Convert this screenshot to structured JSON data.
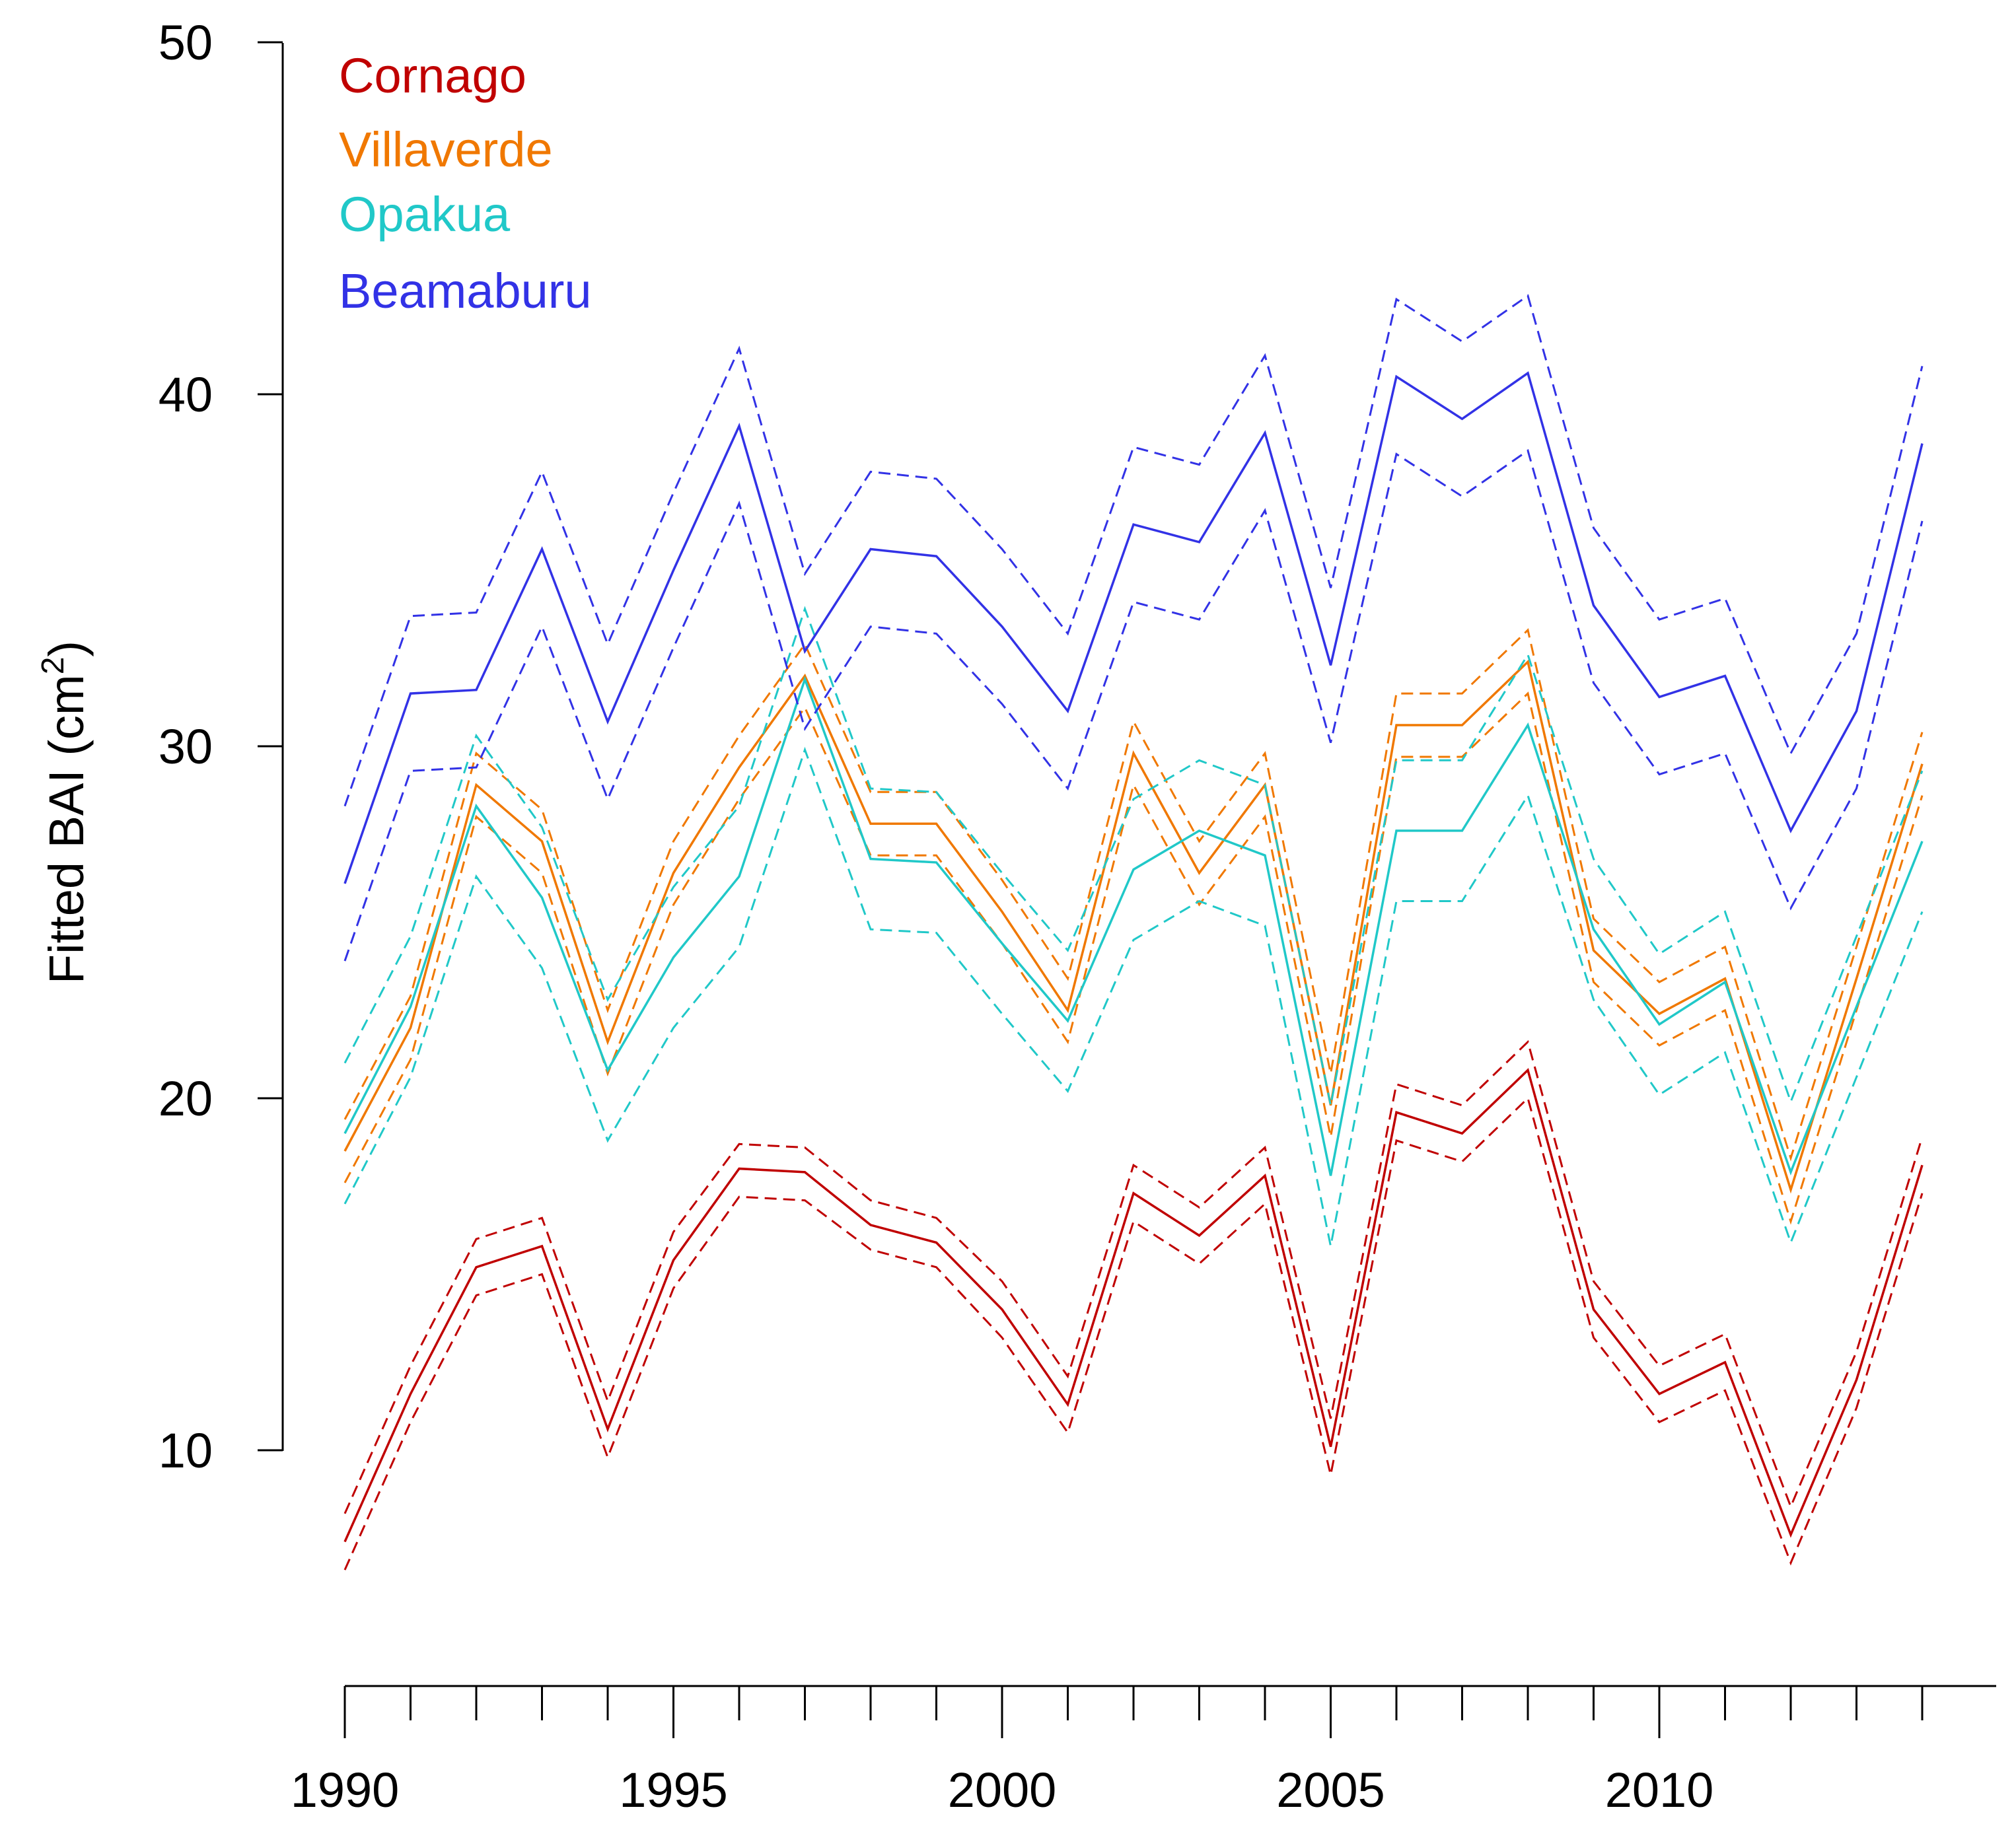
{
  "chart_data": {
    "type": "line",
    "title": "",
    "xlabel": "",
    "ylabel": "Fitted BAI (cm",
    "ylabel_superscript": "2",
    "ylabel_suffix": ")",
    "xlim": [
      1990,
      2015
    ],
    "ylim": [
      5,
      50
    ],
    "x_tick_labels": [
      "1990",
      "1995",
      "2000",
      "2005",
      "2010"
    ],
    "y_tick_labels": [
      "10",
      "20",
      "30",
      "40",
      "50"
    ],
    "x": [
      1990,
      1991,
      1992,
      1993,
      1994,
      1995,
      1996,
      1997,
      1998,
      1999,
      2000,
      2001,
      2002,
      2003,
      2004,
      2005,
      2006,
      2007,
      2008,
      2009,
      2010,
      2011,
      2012,
      2013,
      2014
    ],
    "legend_position": "top-left",
    "series": [
      {
        "name": "Cornago",
        "color": "#c00000",
        "values": [
          7.4,
          11.6,
          15.2,
          15.8,
          10.6,
          15.4,
          18.0,
          17.9,
          16.4,
          15.9,
          14.0,
          11.3,
          17.3,
          16.1,
          17.8,
          10.1,
          19.6,
          19.0,
          20.8,
          14.0,
          11.6,
          12.5,
          7.6,
          12.0,
          18.1
        ],
        "upper": [
          8.2,
          12.4,
          16.0,
          16.6,
          11.4,
          16.2,
          18.7,
          18.6,
          17.1,
          16.6,
          14.8,
          12.1,
          18.1,
          16.9,
          18.6,
          10.9,
          20.4,
          19.8,
          21.6,
          14.8,
          12.4,
          13.3,
          8.4,
          12.8,
          18.9
        ],
        "lower": [
          6.6,
          10.8,
          14.4,
          15.0,
          9.8,
          14.6,
          17.2,
          17.1,
          15.7,
          15.2,
          13.2,
          10.5,
          16.5,
          15.3,
          17.0,
          9.3,
          18.8,
          18.2,
          20.0,
          13.2,
          10.8,
          11.7,
          6.8,
          11.2,
          17.3
        ]
      },
      {
        "name": "Villaverde",
        "color": "#f07800",
        "values": [
          18.5,
          22.0,
          28.9,
          27.3,
          21.6,
          26.4,
          29.4,
          32.0,
          27.8,
          27.8,
          25.3,
          22.5,
          29.8,
          26.4,
          28.9,
          19.8,
          30.6,
          30.6,
          32.4,
          24.2,
          22.4,
          23.4,
          17.4,
          23.4,
          29.5
        ],
        "upper": [
          19.4,
          22.9,
          29.8,
          28.2,
          22.5,
          27.3,
          30.3,
          32.9,
          28.7,
          28.7,
          26.2,
          23.4,
          30.7,
          27.3,
          29.8,
          20.7,
          31.5,
          31.5,
          33.3,
          25.1,
          23.3,
          24.3,
          18.3,
          24.3,
          30.4
        ],
        "lower": [
          17.6,
          21.1,
          28.0,
          26.4,
          20.7,
          25.5,
          28.5,
          31.1,
          26.9,
          26.9,
          24.4,
          21.6,
          28.9,
          25.5,
          28.0,
          18.9,
          29.7,
          29.7,
          31.5,
          23.3,
          21.5,
          22.5,
          16.5,
          22.5,
          28.6
        ]
      },
      {
        "name": "Opakua",
        "color": "#20c8c8",
        "values": [
          19.0,
          22.6,
          28.3,
          25.7,
          20.8,
          24.0,
          26.3,
          31.9,
          26.8,
          26.7,
          24.4,
          22.2,
          26.5,
          27.6,
          26.9,
          17.8,
          27.6,
          27.6,
          30.6,
          24.8,
          22.1,
          23.3,
          17.9,
          22.6,
          27.3
        ],
        "upper": [
          21.0,
          24.6,
          30.3,
          27.7,
          22.8,
          26.0,
          28.3,
          33.9,
          28.8,
          28.7,
          26.4,
          24.2,
          28.5,
          29.6,
          28.9,
          19.8,
          29.6,
          29.6,
          32.6,
          26.8,
          24.1,
          25.3,
          19.9,
          24.6,
          29.3
        ],
        "lower": [
          17.0,
          20.6,
          26.3,
          23.7,
          18.8,
          22.0,
          24.3,
          29.9,
          24.8,
          24.7,
          22.4,
          20.2,
          24.5,
          25.6,
          24.9,
          15.8,
          25.6,
          25.6,
          28.6,
          22.8,
          20.1,
          21.3,
          15.9,
          20.6,
          25.3
        ]
      },
      {
        "name": "Beamaburu",
        "color": "#3232e6",
        "values": [
          26.1,
          31.5,
          31.6,
          35.6,
          30.7,
          35.0,
          39.1,
          32.7,
          35.6,
          35.4,
          33.4,
          31.0,
          36.3,
          35.8,
          38.9,
          32.3,
          40.5,
          39.3,
          40.6,
          34.0,
          31.4,
          32.0,
          27.6,
          31.0,
          38.6
        ],
        "upper": [
          28.3,
          33.7,
          33.8,
          37.8,
          32.9,
          37.2,
          41.3,
          34.9,
          37.8,
          37.6,
          35.6,
          33.2,
          38.5,
          38.0,
          41.1,
          34.5,
          42.7,
          41.5,
          42.8,
          36.2,
          33.6,
          34.2,
          29.8,
          33.2,
          40.8
        ],
        "lower": [
          23.9,
          29.3,
          29.4,
          33.4,
          28.5,
          32.8,
          36.9,
          30.5,
          33.4,
          33.2,
          31.2,
          28.8,
          34.1,
          33.6,
          36.7,
          30.1,
          38.3,
          37.1,
          38.4,
          31.8,
          29.2,
          29.8,
          25.4,
          28.8,
          36.4
        ]
      }
    ]
  }
}
